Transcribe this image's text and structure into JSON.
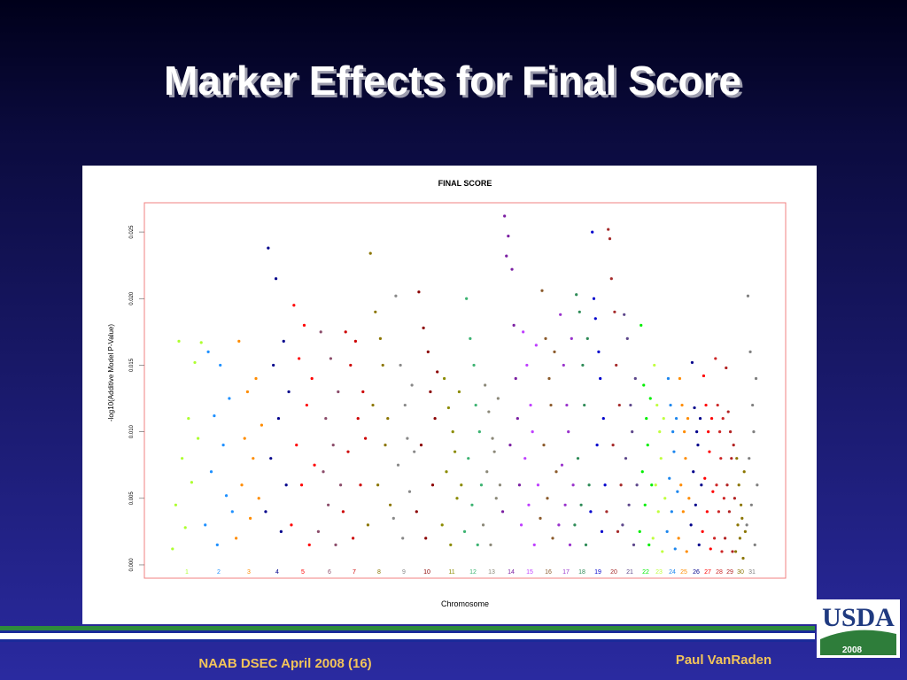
{
  "slide": {
    "title": "Marker Effects for Final Score",
    "footer_left": "NAAB DSEC April 2008 (16)",
    "footer_right": "Paul VanRaden",
    "logo": {
      "text": "USDA",
      "year": "2008"
    }
  },
  "chart_data": {
    "type": "scatter",
    "title": "FINAL SCORE",
    "x_label": "Chromosome",
    "y_label": "-log10(Additive Model P-Value)",
    "ylim": [
      -0.001,
      0.0272
    ],
    "yticks": [
      {
        "value": 0,
        "label": "0.000"
      },
      {
        "value": 0.005,
        "label": "0.005"
      },
      {
        "value": 0.01,
        "label": "0.010"
      },
      {
        "value": 0.015,
        "label": "0.015"
      },
      {
        "value": 0.02,
        "label": "0.020"
      },
      {
        "value": 0.025,
        "label": "0.025"
      }
    ],
    "series": [
      {
        "name": "1",
        "color": "#adff2f",
        "values": [
          0.0012,
          0.0045,
          0.0168,
          0.008,
          0.0028,
          0.011,
          0.0062,
          0.0152,
          0.0095,
          0.0167
        ]
      },
      {
        "name": "2",
        "color": "#1e90ff",
        "values": [
          0.003,
          0.016,
          0.007,
          0.0112,
          0.0015,
          0.015,
          0.009,
          0.0052,
          0.0125,
          0.004
        ]
      },
      {
        "name": "3",
        "color": "#ff8c00",
        "values": [
          0.002,
          0.0168,
          0.006,
          0.0095,
          0.013,
          0.0035,
          0.008,
          0.014,
          0.005,
          0.0105
        ]
      },
      {
        "name": "4",
        "color": "#00008b",
        "values": [
          0.004,
          0.0238,
          0.008,
          0.015,
          0.0215,
          0.011,
          0.0025,
          0.0168,
          0.006,
          0.013
        ]
      },
      {
        "name": "5",
        "color": "#ff0000",
        "values": [
          0.003,
          0.0195,
          0.009,
          0.0155,
          0.006,
          0.018,
          0.012,
          0.0015,
          0.014,
          0.0075
        ]
      },
      {
        "name": "6",
        "color": "#8b4c6a",
        "values": [
          0.0025,
          0.0175,
          0.007,
          0.011,
          0.0045,
          0.0155,
          0.009,
          0.0015,
          0.013,
          0.006
        ]
      },
      {
        "name": "7",
        "color": "#cd0000",
        "values": [
          0.004,
          0.0175,
          0.0085,
          0.015,
          0.002,
          0.0168,
          0.011,
          0.006,
          0.013,
          0.0095
        ]
      },
      {
        "name": "8",
        "color": "#8b7500",
        "values": [
          0.003,
          0.0234,
          0.012,
          0.019,
          0.006,
          0.017,
          0.015,
          0.009,
          0.011,
          0.0045
        ]
      },
      {
        "name": "9",
        "color": "#888888",
        "values": [
          0.0035,
          0.0202,
          0.0075,
          0.015,
          0.002,
          0.012,
          0.0095,
          0.0055,
          0.0135,
          0.0085
        ]
      },
      {
        "name": "10",
        "color": "#8b0000",
        "values": [
          0.004,
          0.0205,
          0.009,
          0.0178,
          0.002,
          0.016,
          0.013,
          0.006,
          0.011,
          0.0145
        ]
      },
      {
        "name": "11",
        "color": "#8b8b00",
        "values": [
          0.003,
          0.014,
          0.007,
          0.0118,
          0.0015,
          0.01,
          0.0085,
          0.005,
          0.013,
          0.006
        ]
      },
      {
        "name": "12",
        "color": "#3cb371",
        "values": [
          0.0025,
          0.02,
          0.008,
          0.017,
          0.0045,
          0.015,
          0.012,
          0.0015,
          0.01,
          0.006
        ]
      },
      {
        "name": "13",
        "color": "#8b8878",
        "values": [
          0.003,
          0.0135,
          0.007,
          0.0115,
          0.0015,
          0.0095,
          0.0085,
          0.005,
          0.0125,
          0.006
        ]
      },
      {
        "name": "14",
        "color": "#7b1fa2",
        "values": [
          0.004,
          0.0262,
          0.0232,
          0.0247,
          0.009,
          0.0222,
          0.018,
          0.014,
          0.011,
          0.006
        ]
      },
      {
        "name": "15",
        "color": "#bf3eff",
        "values": [
          0.003,
          0.0175,
          0.008,
          0.015,
          0.0045,
          0.012,
          0.01,
          0.0015,
          0.0165,
          0.006
        ]
      },
      {
        "name": "16",
        "color": "#8b5a2b",
        "values": [
          0.0035,
          0.0206,
          0.009,
          0.017,
          0.005,
          0.014,
          0.012,
          0.002,
          0.016,
          0.007
        ]
      },
      {
        "name": "17",
        "color": "#9932cc",
        "values": [
          0.003,
          0.0188,
          0.0075,
          0.015,
          0.0045,
          0.012,
          0.01,
          0.0015,
          0.017,
          0.006
        ]
      },
      {
        "name": "18",
        "color": "#2e8b57",
        "values": [
          0.003,
          0.0203,
          0.008,
          0.019,
          0.0045,
          0.015,
          0.012,
          0.0015,
          0.017,
          0.006
        ]
      },
      {
        "name": "19",
        "color": "#0000cd",
        "values": [
          0.004,
          0.025,
          0.02,
          0.0185,
          0.009,
          0.016,
          0.014,
          0.0025,
          0.011,
          0.006
        ]
      },
      {
        "name": "20",
        "color": "#a52a2a",
        "values": [
          0.004,
          0.0252,
          0.0245,
          0.0215,
          0.009,
          0.019,
          0.015,
          0.0025,
          0.012,
          0.006
        ]
      },
      {
        "name": "21",
        "color": "#5d478b",
        "values": [
          0.003,
          0.0188,
          0.008,
          0.017,
          0.0045,
          0.012,
          0.01,
          0.0015,
          0.014,
          0.006
        ]
      },
      {
        "name": "22",
        "color": "#00ee00",
        "values": [
          0.0025,
          0.018,
          0.007,
          0.0135,
          0.0045,
          0.011,
          0.009,
          0.0015,
          0.0125,
          0.006
        ]
      },
      {
        "name": "23",
        "color": "#c0ff3e",
        "values": [
          0.002,
          0.015,
          0.006,
          0.012,
          0.004,
          0.01,
          0.008,
          0.001,
          0.011,
          0.005
        ]
      },
      {
        "name": "24",
        "color": "#1c86ee",
        "values": [
          0.0025,
          0.014,
          0.0065,
          0.012,
          0.004,
          0.01,
          0.0085,
          0.0012,
          0.011,
          0.0055
        ]
      },
      {
        "name": "25",
        "color": "#ff8c00",
        "values": [
          0.002,
          0.014,
          0.006,
          0.012,
          0.004,
          0.01,
          0.008,
          0.001,
          0.011,
          0.005
        ]
      },
      {
        "name": "26",
        "color": "#00008b",
        "values": [
          0.003,
          0.0152,
          0.007,
          0.0118,
          0.0045,
          0.01,
          0.009,
          0.0015,
          0.011,
          0.006
        ]
      },
      {
        "name": "27",
        "color": "#ff0000",
        "values": [
          0.0025,
          0.0142,
          0.0065,
          0.012,
          0.004,
          0.01,
          0.0085,
          0.0012,
          0.011,
          0.0055
        ]
      },
      {
        "name": "28",
        "color": "#cd2626",
        "values": [
          0.002,
          0.0155,
          0.006,
          0.012,
          0.004,
          0.01,
          0.008,
          0.001,
          0.011,
          0.005
        ]
      },
      {
        "name": "29",
        "color": "#b22222",
        "values": [
          0.002,
          0.0148,
          0.006,
          0.0115,
          0.004,
          0.01,
          0.008,
          0.001,
          0.009,
          0.005
        ]
      },
      {
        "name": "30",
        "color": "#8b7500",
        "values": [
          0.001,
          0.008,
          0.003,
          0.006,
          0.002,
          0.0045,
          0.0035,
          0.0005,
          0.007,
          0.0025
        ]
      },
      {
        "name": "31",
        "color": "#7f7f7f",
        "values": [
          0.003,
          0.0202,
          0.008,
          0.016,
          0.0045,
          0.012,
          0.01,
          0.0015,
          0.014,
          0.006
        ]
      }
    ]
  }
}
